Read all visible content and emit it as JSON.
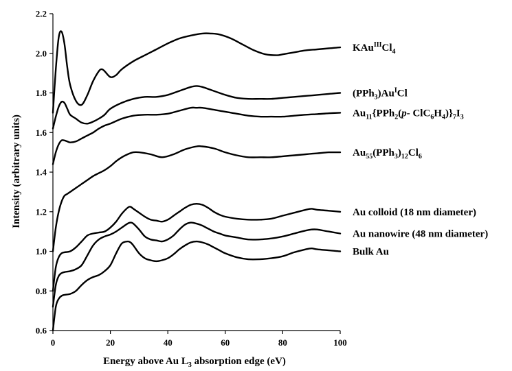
{
  "chart_data": {
    "type": "line",
    "title": "",
    "xlabel": "Energy above Au L3 absorption edge (eV)",
    "ylabel": "Intensity (arbitrary units)",
    "xlim": [
      0,
      100
    ],
    "ylim": [
      0.6,
      2.2
    ],
    "xticks": [
      0,
      20,
      40,
      60,
      80,
      100
    ],
    "yticks": [
      0.6,
      0.8,
      1.0,
      1.2,
      1.4,
      1.6,
      1.8,
      2.0,
      2.2
    ],
    "xtick_labels": [
      "0",
      "20",
      "40",
      "60",
      "80",
      "100"
    ],
    "ytick_labels": [
      "0.6",
      "0.8",
      "1.0",
      "1.2",
      "1.4",
      "1.6",
      "1.8",
      "2.0",
      "2.2"
    ],
    "series": [
      {
        "name": "KAu(III)Cl4",
        "label_parts": [
          [
            "KAu",
            ""
          ],
          [
            "III",
            "sup"
          ],
          [
            "Cl",
            ""
          ],
          [
            "4",
            "sub"
          ]
        ],
        "x": [
          0,
          1,
          2,
          3,
          4,
          5,
          6,
          8,
          10,
          12,
          14,
          16,
          17,
          18,
          20,
          22,
          24,
          28,
          32,
          36,
          40,
          44,
          48,
          52,
          55,
          58,
          62,
          66,
          70,
          74,
          78,
          80,
          84,
          88,
          92,
          96,
          100
        ],
        "y": [
          1.7,
          1.92,
          2.08,
          2.11,
          2.05,
          1.93,
          1.84,
          1.76,
          1.74,
          1.79,
          1.86,
          1.91,
          1.92,
          1.91,
          1.88,
          1.89,
          1.92,
          1.96,
          1.99,
          2.02,
          2.05,
          2.075,
          2.09,
          2.1,
          2.1,
          2.095,
          2.075,
          2.045,
          2.015,
          1.995,
          1.99,
          1.995,
          2.005,
          2.015,
          2.02,
          2.025,
          2.03
        ]
      },
      {
        "name": "(PPh3)Au(I)Cl",
        "label_parts": [
          [
            "(PPh",
            ""
          ],
          [
            "3",
            "sub"
          ],
          [
            ")Au",
            ""
          ],
          [
            "I",
            "sup"
          ],
          [
            "Cl",
            ""
          ]
        ],
        "x": [
          0,
          1,
          2,
          3,
          4,
          5,
          6,
          8,
          10,
          12,
          14,
          16,
          18,
          20,
          24,
          28,
          32,
          36,
          40,
          44,
          48,
          50,
          52,
          56,
          60,
          64,
          68,
          72,
          76,
          80,
          84,
          88,
          92,
          96,
          100
        ],
        "y": [
          1.62,
          1.68,
          1.73,
          1.755,
          1.75,
          1.72,
          1.69,
          1.67,
          1.65,
          1.645,
          1.655,
          1.67,
          1.69,
          1.72,
          1.75,
          1.77,
          1.78,
          1.78,
          1.79,
          1.81,
          1.83,
          1.835,
          1.83,
          1.81,
          1.79,
          1.775,
          1.77,
          1.77,
          1.77,
          1.775,
          1.78,
          1.785,
          1.79,
          1.795,
          1.8
        ]
      },
      {
        "name": "Au11{PPh2(p-ClC6H4)}7I3",
        "label_parts": [
          [
            "Au",
            ""
          ],
          [
            "11",
            "sub"
          ],
          [
            "{PPh",
            ""
          ],
          [
            "2",
            "sub"
          ],
          [
            "(",
            ""
          ],
          [
            "p-",
            "italic"
          ],
          [
            " ClC",
            ""
          ],
          [
            "6",
            "sub"
          ],
          [
            "H",
            ""
          ],
          [
            "4",
            "sub"
          ],
          [
            ")}",
            ""
          ],
          [
            "7",
            "sub"
          ],
          [
            "I",
            ""
          ],
          [
            "3",
            "sub"
          ]
        ],
        "x": [
          0,
          1,
          2,
          3,
          4,
          5,
          6,
          8,
          10,
          12,
          14,
          16,
          18,
          20,
          24,
          28,
          32,
          36,
          40,
          44,
          48,
          50,
          52,
          56,
          60,
          64,
          68,
          72,
          76,
          80,
          84,
          88,
          92,
          96,
          100
        ],
        "y": [
          1.44,
          1.5,
          1.54,
          1.56,
          1.56,
          1.555,
          1.55,
          1.555,
          1.57,
          1.585,
          1.6,
          1.62,
          1.635,
          1.645,
          1.67,
          1.685,
          1.69,
          1.69,
          1.695,
          1.71,
          1.725,
          1.725,
          1.725,
          1.715,
          1.705,
          1.695,
          1.685,
          1.68,
          1.68,
          1.68,
          1.685,
          1.69,
          1.693,
          1.697,
          1.7
        ]
      },
      {
        "name": "Au55(PPh3)12Cl6",
        "label_parts": [
          [
            "Au",
            ""
          ],
          [
            "55",
            "sub"
          ],
          [
            "(PPh",
            ""
          ],
          [
            "3",
            "sub"
          ],
          [
            ")",
            ""
          ],
          [
            "12",
            "sub"
          ],
          [
            "Cl",
            ""
          ],
          [
            "6",
            "sub"
          ]
        ],
        "x": [
          0,
          1,
          2,
          3,
          4,
          5,
          6,
          8,
          10,
          12,
          14,
          16,
          18,
          20,
          22,
          24,
          26,
          28,
          30,
          34,
          38,
          42,
          46,
          50,
          52,
          56,
          60,
          64,
          68,
          72,
          76,
          80,
          84,
          88,
          92,
          96,
          100
        ],
        "y": [
          1.0,
          1.12,
          1.2,
          1.25,
          1.28,
          1.29,
          1.3,
          1.32,
          1.34,
          1.36,
          1.38,
          1.395,
          1.41,
          1.43,
          1.455,
          1.475,
          1.49,
          1.5,
          1.5,
          1.49,
          1.475,
          1.49,
          1.515,
          1.53,
          1.53,
          1.52,
          1.5,
          1.485,
          1.475,
          1.475,
          1.475,
          1.48,
          1.485,
          1.49,
          1.495,
          1.5,
          1.5
        ]
      },
      {
        "name": "Au colloid (18 nm diameter)",
        "label_parts": [
          [
            "Au colloid (18 nm diameter)",
            ""
          ]
        ],
        "x": [
          0,
          1,
          2,
          3,
          4,
          6,
          8,
          10,
          12,
          14,
          16,
          18,
          20,
          22,
          24,
          26,
          27,
          28,
          30,
          32,
          34,
          36,
          38,
          40,
          42,
          44,
          46,
          48,
          50,
          52,
          54,
          56,
          58,
          60,
          64,
          68,
          72,
          76,
          80,
          84,
          88,
          90,
          92,
          96,
          100
        ],
        "y": [
          0.8,
          0.92,
          0.97,
          0.99,
          0.995,
          1.0,
          1.02,
          1.05,
          1.08,
          1.09,
          1.095,
          1.1,
          1.12,
          1.15,
          1.19,
          1.22,
          1.225,
          1.215,
          1.195,
          1.175,
          1.16,
          1.155,
          1.15,
          1.16,
          1.18,
          1.2,
          1.22,
          1.235,
          1.24,
          1.235,
          1.22,
          1.2,
          1.185,
          1.175,
          1.165,
          1.16,
          1.16,
          1.165,
          1.18,
          1.195,
          1.21,
          1.215,
          1.21,
          1.205,
          1.2
        ]
      },
      {
        "name": "Au nanowire (48 nm diameter)",
        "label_parts": [
          [
            "Au nanowire (48 nm diameter)",
            ""
          ]
        ],
        "x": [
          0,
          1,
          2,
          3,
          4,
          6,
          8,
          10,
          12,
          14,
          16,
          18,
          20,
          22,
          24,
          26,
          27,
          28,
          30,
          32,
          34,
          36,
          38,
          40,
          42,
          44,
          46,
          48,
          50,
          52,
          54,
          56,
          58,
          60,
          64,
          68,
          72,
          76,
          80,
          84,
          88,
          90,
          92,
          96,
          100
        ],
        "y": [
          0.72,
          0.83,
          0.875,
          0.89,
          0.895,
          0.9,
          0.91,
          0.93,
          0.98,
          1.03,
          1.06,
          1.075,
          1.085,
          1.1,
          1.12,
          1.14,
          1.145,
          1.14,
          1.11,
          1.075,
          1.06,
          1.055,
          1.05,
          1.06,
          1.08,
          1.11,
          1.135,
          1.145,
          1.14,
          1.13,
          1.115,
          1.1,
          1.09,
          1.08,
          1.07,
          1.06,
          1.06,
          1.065,
          1.075,
          1.09,
          1.105,
          1.11,
          1.11,
          1.1,
          1.09
        ]
      },
      {
        "name": "Bulk Au",
        "label_parts": [
          [
            "Bulk Au",
            ""
          ]
        ],
        "x": [
          0,
          1,
          2,
          3,
          4,
          6,
          8,
          10,
          12,
          14,
          16,
          18,
          20,
          22,
          24,
          26,
          27,
          28,
          30,
          32,
          34,
          36,
          38,
          40,
          42,
          44,
          46,
          48,
          50,
          52,
          54,
          56,
          58,
          60,
          64,
          68,
          72,
          76,
          80,
          84,
          88,
          90,
          92,
          96,
          100
        ],
        "y": [
          0.6,
          0.72,
          0.76,
          0.775,
          0.78,
          0.785,
          0.8,
          0.83,
          0.855,
          0.87,
          0.88,
          0.9,
          0.93,
          0.99,
          1.04,
          1.05,
          1.045,
          1.03,
          0.99,
          0.965,
          0.955,
          0.95,
          0.955,
          0.965,
          0.985,
          1.01,
          1.03,
          1.045,
          1.05,
          1.045,
          1.035,
          1.02,
          1.005,
          0.99,
          0.97,
          0.96,
          0.96,
          0.965,
          0.975,
          0.995,
          1.01,
          1.015,
          1.01,
          1.005,
          1.0
        ]
      }
    ]
  }
}
